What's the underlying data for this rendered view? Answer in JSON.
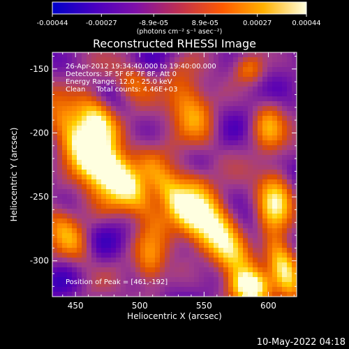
{
  "chart_data": {
    "type": "heatmap",
    "title": "Reconstructed RHESSI Image",
    "xlabel": "Heliocentric X (arcsec)",
    "ylabel": "Heliocentric Y (arcsec)",
    "xlim": [
      432,
      622
    ],
    "ylim": [
      -328,
      -137
    ],
    "x_ticks": [
      450,
      500,
      550,
      600
    ],
    "y_ticks": [
      -150,
      -200,
      -250,
      -300
    ],
    "colorbar": {
      "ticks": [
        "-0.00044",
        "-0.00027",
        "-8.9e-05",
        "8.9e-05",
        "0.00027",
        "0.00044"
      ],
      "tick_values": [
        -0.00044,
        -0.00027,
        -8.9e-05,
        8.9e-05,
        0.00027,
        0.00044
      ],
      "range": [
        -0.00044,
        0.00044
      ],
      "unit_label": "(photons cm⁻² s⁻¹ asec⁻²)",
      "colors": [
        "#0000c8",
        "#5a00b4",
        "#a03c8c",
        "#e05000",
        "#ff8c00",
        "#ffd200",
        "#ffffe0"
      ]
    },
    "annotations": {
      "time_range": "26-Apr-2012 19:34:40.000 to 19:40:00.000",
      "detectors": "Detectors: 3F 5F 6F 7F 8F, Att 0",
      "energy": "Energy Range: 12.0 - 25.0 keV",
      "clean": "Clean     Total counts: 4.46E+03",
      "peak": "Position of Peak = [461,-192]"
    },
    "peak_position": [
      461,
      -192
    ],
    "total_counts": 4460,
    "blobs": [
      {
        "x": 458,
        "y": -218,
        "sx": 10,
        "sy": 26,
        "rot": -35,
        "amp": 1.0
      },
      {
        "x": 467,
        "y": -190,
        "sx": 9,
        "sy": 14,
        "rot": -30,
        "amp": 0.95
      },
      {
        "x": 485,
        "y": -235,
        "sx": 9,
        "sy": 32,
        "rot": -40,
        "amp": 1.0
      },
      {
        "x": 530,
        "y": -255,
        "sx": 8,
        "sy": 28,
        "rot": -35,
        "amp": 0.85
      },
      {
        "x": 563,
        "y": -280,
        "sx": 9,
        "sy": 40,
        "rot": -30,
        "amp": 0.95
      },
      {
        "x": 540,
        "y": -182,
        "sx": 10,
        "sy": 20,
        "rot": -25,
        "amp": 0.6
      },
      {
        "x": 605,
        "y": -255,
        "sx": 9,
        "sy": 15,
        "rot": 0,
        "amp": 0.95
      },
      {
        "x": 600,
        "y": -195,
        "sx": 8,
        "sy": 12,
        "rot": 0,
        "amp": 0.55
      },
      {
        "x": 612,
        "y": -305,
        "sx": 7,
        "sy": 18,
        "rot": -20,
        "amp": 0.8
      },
      {
        "x": 444,
        "y": -280,
        "sx": 8,
        "sy": 18,
        "rot": -35,
        "amp": 0.55
      },
      {
        "x": 508,
        "y": -300,
        "sx": 8,
        "sy": 14,
        "rot": 0,
        "amp": 0.45
      },
      {
        "x": 585,
        "y": -320,
        "sx": 10,
        "sy": 8,
        "rot": 0,
        "amp": 0.8
      },
      {
        "x": 495,
        "y": -160,
        "sx": 10,
        "sy": 10,
        "rot": 0,
        "amp": 0.45
      },
      {
        "x": 585,
        "y": -150,
        "sx": 8,
        "sy": 8,
        "rot": 0,
        "amp": 0.45
      }
    ]
  },
  "footer": {
    "date": "10-May-2022 04:18"
  }
}
